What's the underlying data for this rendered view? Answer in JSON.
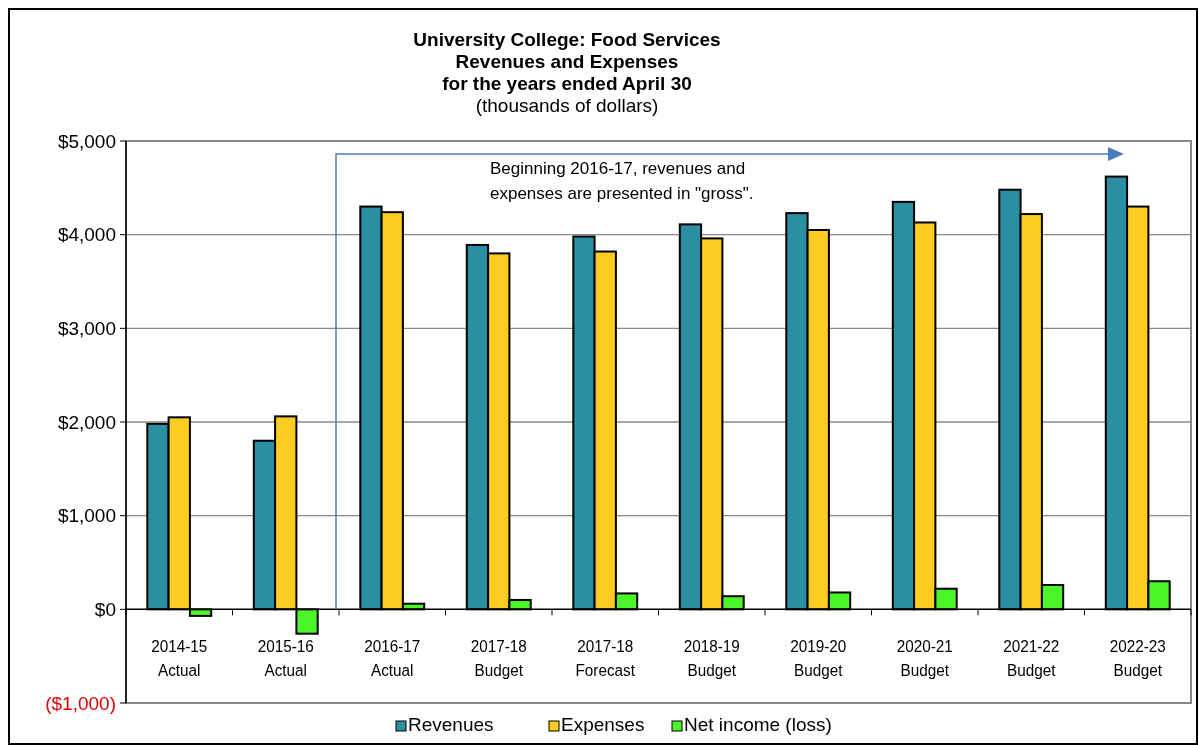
{
  "chart_data": {
    "type": "bar",
    "title": "University College:  Food Services\nRevenues and Expenses\nfor the years ended April 30",
    "subtitle": "(thousands of dollars)",
    "categories": [
      "2014-15\nActual",
      "2015-16\nActual",
      "2016-17\nActual",
      "2017-18\nBudget",
      "2017-18\nForecast",
      "2018-19\nBudget",
      "2019-20\nBudget",
      "2020-21\nBudget",
      "2021-22\nBudget",
      "2022-23\nBudget"
    ],
    "series": [
      {
        "name": "Revenues",
        "color": "#2b8fa3",
        "values": [
          1980,
          1800,
          4300,
          3890,
          3980,
          4110,
          4230,
          4350,
          4480,
          4620
        ]
      },
      {
        "name": "Expenses",
        "color": "#fccc22",
        "values": [
          2050,
          2060,
          4240,
          3800,
          3820,
          3960,
          4050,
          4130,
          4220,
          4300
        ]
      },
      {
        "name": "Net income (loss)",
        "color": "#4cf52a",
        "values": [
          -70,
          -260,
          60,
          100,
          170,
          140,
          180,
          220,
          260,
          300
        ]
      }
    ],
    "ylim": [
      -1000,
      5000
    ],
    "yticks": [
      {
        "value": -1000,
        "label": "($1,000)"
      },
      {
        "value": 0,
        "label": "$0"
      },
      {
        "value": 1000,
        "label": "$1,000"
      },
      {
        "value": 2000,
        "label": "$2,000"
      },
      {
        "value": 3000,
        "label": "$3,000"
      },
      {
        "value": 4000,
        "label": "$4,000"
      },
      {
        "value": 5000,
        "label": "$5,000"
      }
    ],
    "grid": "y",
    "legend": "bottom",
    "annotations": [
      "Beginning 2016-17, revenues and\nexpenses are presented in \"gross\"."
    ]
  }
}
